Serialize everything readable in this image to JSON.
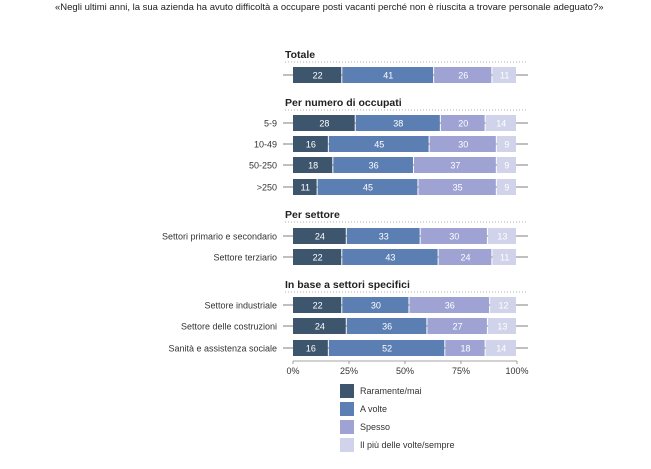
{
  "question": "«Negli ultimi anni, la sua azienda ha avuto difficoltà a occupare posti vacanti perché non è riuscita a trovare personale adeguato?»",
  "chart_data": {
    "type": "bar",
    "orientation": "horizontal",
    "stacked": true,
    "xlim": [
      0,
      100
    ],
    "x_ticks": [
      "0%",
      "25%",
      "50%",
      "75%",
      "100%"
    ],
    "colors": [
      "#3d566e",
      "#5b7fb3",
      "#9ea3d4",
      "#d1d3ea"
    ],
    "series_names": [
      "Raramente/mai",
      "A volte",
      "Spesso",
      "Il più delle volte/sempre"
    ],
    "groups": [
      {
        "title": "Totale",
        "rows": [
          {
            "label": "",
            "values": [
              22,
              41,
              26,
              11
            ]
          }
        ]
      },
      {
        "title": "Per numero di occupati",
        "rows": [
          {
            "label": "5-9",
            "values": [
              28,
              38,
              20,
              14
            ]
          },
          {
            "label": "10-49",
            "values": [
              16,
              45,
              30,
              9
            ]
          },
          {
            "label": "50-250",
            "values": [
              18,
              36,
              37,
              9
            ]
          },
          {
            "label": ">250",
            "values": [
              11,
              45,
              35,
              9
            ]
          }
        ]
      },
      {
        "title": "Per settore",
        "rows": [
          {
            "label": "Settori primario e secondario",
            "values": [
              24,
              33,
              30,
              13
            ]
          },
          {
            "label": "Settore terziario",
            "values": [
              22,
              43,
              24,
              11
            ]
          }
        ]
      },
      {
        "title": "In base a settori specifici",
        "rows": [
          {
            "label": "Settore industriale",
            "values": [
              22,
              30,
              36,
              12
            ]
          },
          {
            "label": "Settore delle costruzioni",
            "values": [
              24,
              36,
              27,
              13
            ]
          },
          {
            "label": "Sanità e assistenza sociale",
            "values": [
              16,
              52,
              18,
              14
            ]
          }
        ]
      }
    ]
  }
}
